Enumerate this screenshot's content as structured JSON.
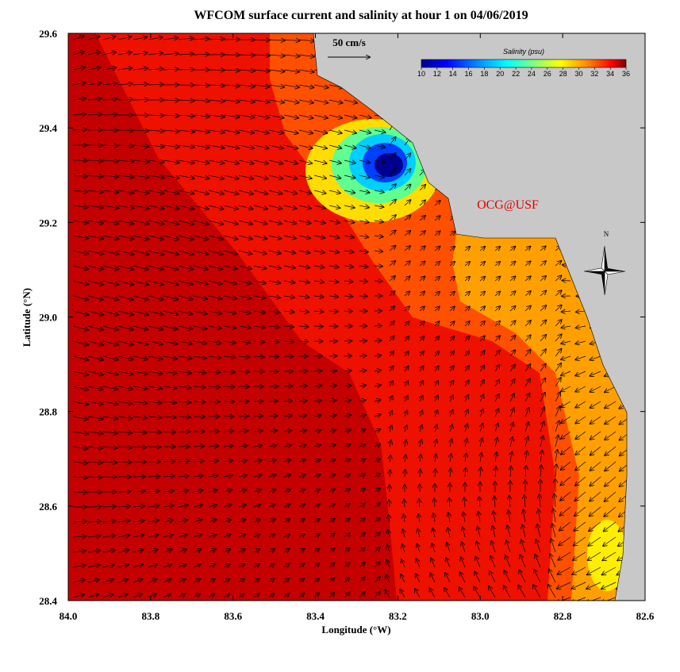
{
  "title": "WFCOM surface current and salinity at hour 1 on 04/06/2019",
  "map": {
    "xlabel": "Longitude (°W)",
    "ylabel": "Latitude (°N)",
    "xlim": [
      84.0,
      82.6
    ],
    "xticks": [
      {
        "value": 84.0,
        "label": "84.0"
      },
      83.8,
      83.6,
      83.4,
      83.2,
      {
        "value": 83.0,
        "label": "83.0"
      },
      82.8,
      82.6
    ],
    "ylim": [
      28.4,
      29.6
    ],
    "yticks": [
      28.4,
      28.6,
      28.8,
      {
        "value": 29.0,
        "label": "29.0"
      },
      29.2,
      29.4,
      29.6
    ]
  },
  "colorbar": {
    "title": "Salinity (psu)",
    "lim": [
      10,
      36
    ],
    "ticks": [
      10,
      12,
      14,
      16,
      18,
      20,
      22,
      24,
      26,
      28,
      30,
      32,
      34,
      36
    ]
  },
  "scale_label": "50 cm/s",
  "credit": "OCG@USF",
  "north": "N"
}
